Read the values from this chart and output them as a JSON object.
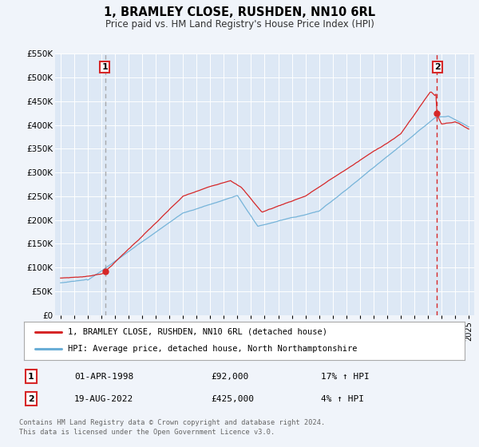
{
  "title": "1, BRAMLEY CLOSE, RUSHDEN, NN10 6RL",
  "subtitle": "Price paid vs. HM Land Registry's House Price Index (HPI)",
  "ylim": [
    0,
    550000
  ],
  "yticks": [
    0,
    50000,
    100000,
    150000,
    200000,
    250000,
    300000,
    350000,
    400000,
    450000,
    500000,
    550000
  ],
  "ytick_labels": [
    "£0",
    "£50K",
    "£100K",
    "£150K",
    "£200K",
    "£250K",
    "£300K",
    "£350K",
    "£400K",
    "£450K",
    "£500K",
    "£550K"
  ],
  "hpi_color": "#6aaed6",
  "price_color": "#d62728",
  "background_color": "#f0f4fa",
  "plot_bg_color": "#dde8f5",
  "grid_color": "#ffffff",
  "vline1_color": "#999999",
  "vline2_color": "#d62728",
  "legend_label_price": "1, BRAMLEY CLOSE, RUSHDEN, NN10 6RL (detached house)",
  "legend_label_hpi": "HPI: Average price, detached house, North Northamptonshire",
  "sale1_date": "01-APR-1998",
  "sale1_price": "£92,000",
  "sale1_hpi": "17% ↑ HPI",
  "sale2_date": "19-AUG-2022",
  "sale2_price": "£425,000",
  "sale2_hpi": "4% ↑ HPI",
  "footer": "Contains HM Land Registry data © Crown copyright and database right 2024.\nThis data is licensed under the Open Government Licence v3.0.",
  "vline1_year": 1998.3,
  "vline2_year": 2022.65,
  "marker1_val": 92000,
  "marker2_val": 425000
}
